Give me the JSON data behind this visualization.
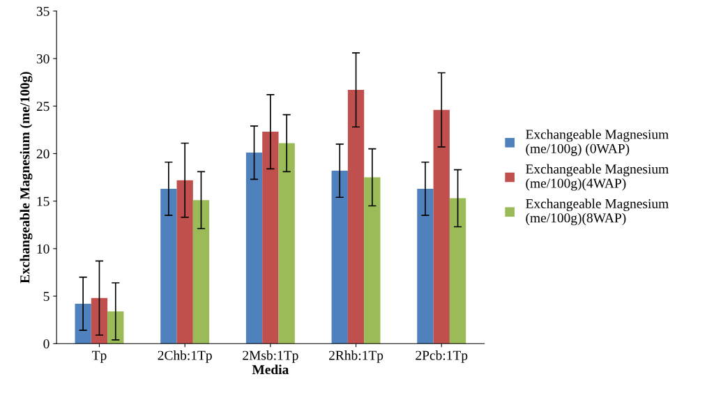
{
  "chart_data": {
    "type": "bar",
    "xlabel": "Media",
    "ylabel": "Exchangeable Magnesium (me/100g)",
    "categories": [
      "Tp",
      "2Chb:1Tp",
      "2Msb:1Tp",
      "2Rhb:1Tp",
      "2Pcb:1Tp"
    ],
    "series": [
      {
        "name": "Exchangeable Magnesium (me/100g) (0WAP)",
        "color": "#4f81bd",
        "values": [
          4.2,
          16.3,
          20.1,
          18.2,
          16.3
        ],
        "errors": [
          2.8,
          2.8,
          2.8,
          2.8,
          2.8
        ]
      },
      {
        "name": "Exchangeable Magnesium (me/100g)(4WAP)",
        "color": "#c0504d",
        "values": [
          4.8,
          17.2,
          22.3,
          26.7,
          24.6
        ],
        "errors": [
          3.9,
          3.9,
          3.9,
          3.9,
          3.9
        ]
      },
      {
        "name": "Exchangeable Magnesium (me/100g)(8WAP)",
        "color": "#9bbb59",
        "values": [
          3.4,
          15.1,
          21.1,
          17.5,
          15.3
        ],
        "errors": [
          3.0,
          3.0,
          3.0,
          3.0,
          3.0
        ]
      }
    ],
    "ylim": [
      0,
      35
    ],
    "yticks": [
      0,
      5,
      10,
      15,
      20,
      25,
      30,
      35
    ],
    "grid": false,
    "legend": "right"
  }
}
